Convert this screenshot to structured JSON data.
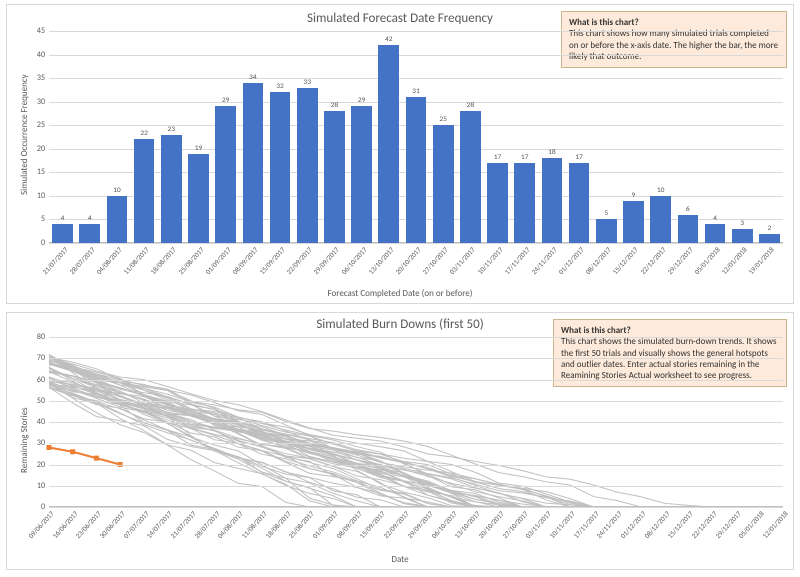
{
  "top_chart": {
    "type": "bar",
    "title": "Simulated Forecast Date Frequency",
    "title_fontsize": 13,
    "x_axis_label": "Forecast Completed Date (on or before)",
    "y_axis_label": "Simulated Occurrence Frequency",
    "label_fontsize": 9,
    "tick_fontsize": 8,
    "value_label_fontsize": 7.5,
    "y_min": 0,
    "y_max": 45,
    "y_tick_step": 5,
    "bar_color": "#4472c4",
    "background_color": "#ffffff",
    "grid_color": "#d9d9d9",
    "bar_gap_ratio": 0.24,
    "categories": [
      "21/07/2017",
      "28/07/2017",
      "04/08/2017",
      "11/08/2017",
      "18/08/2017",
      "25/08/2017",
      "01/09/2017",
      "08/09/2017",
      "15/09/2017",
      "22/09/2017",
      "29/09/2017",
      "06/10/2017",
      "13/10/2017",
      "20/10/2017",
      "27/10/2017",
      "03/11/2017",
      "10/11/2017",
      "17/11/2017",
      "24/11/2017",
      "01/12/2017",
      "08/12/2017",
      "15/12/2017",
      "22/12/2017",
      "29/12/2017",
      "05/01/2018",
      "12/01/2018",
      "19/01/2018"
    ],
    "values": [
      4,
      4,
      10,
      22,
      23,
      19,
      29,
      34,
      32,
      33,
      28,
      29,
      42,
      31,
      25,
      28,
      17,
      17,
      18,
      17,
      5,
      9,
      10,
      6,
      4,
      3,
      2
    ],
    "annotation": {
      "title": "What is this chart?",
      "body": "This chart shows how many simulated trials completed on or  before the x-axis date. The higher the bar, the more likely that outcome.",
      "background_color": "#fdeada",
      "border_color": "#ccb48f"
    }
  },
  "bottom_chart": {
    "type": "line",
    "title": "Simulated Burn Downs (first 50)",
    "title_fontsize": 13,
    "x_axis_label": "Date",
    "y_axis_label": "Remaining Stories",
    "label_fontsize": 9,
    "tick_fontsize": 8,
    "y_min": 0,
    "y_max": 80,
    "y_tick_step": 10,
    "background_color": "#ffffff",
    "grid_color": "#d9d9d9",
    "sim_line_color": "#bfbfbf",
    "sim_line_width": 1,
    "sim_line_count": 50,
    "actual_line_color": "#ed7d31",
    "actual_marker_color": "#ed7d31",
    "actual_line_width": 2,
    "actual_marker_size": 5,
    "x_categories": [
      "09/06/2017",
      "16/06/2017",
      "23/06/2017",
      "30/06/2017",
      "07/07/2017",
      "14/07/2017",
      "21/07/2017",
      "28/07/2017",
      "04/08/2017",
      "11/08/2017",
      "18/08/2017",
      "25/08/2017",
      "01/09/2017",
      "08/09/2017",
      "15/09/2017",
      "22/09/2017",
      "29/09/2017",
      "06/10/2017",
      "13/10/2017",
      "20/10/2017",
      "27/10/2017",
      "03/11/2017",
      "10/11/2017",
      "17/11/2017",
      "24/11/2017",
      "01/12/2017",
      "08/12/2017",
      "15/12/2017",
      "22/12/2017",
      "29/12/2017",
      "05/01/2018",
      "12/01/2018"
    ],
    "actual_series": {
      "x_index": [
        0,
        1,
        2,
        3
      ],
      "y": [
        28,
        26,
        23,
        20
      ]
    },
    "sim_series_sample": {
      "note": "50 grey burn-down lines starting between y≈55 and y≈72 at x_index 0, each descending irregularly to y=0 at varying x_index values between 6 and 31.",
      "start_y_min": 55,
      "start_y_max": 72,
      "end_x_index_min": 6,
      "end_x_index_max": 31
    },
    "annotation": {
      "title": "What is this chart?",
      "body": "This chart shows the simulated burn-down trends. It shows the first 50 trials and visually shows the general hotspots and outlier dates. Enter actual stories remaining in the Reamining Stories Actual worksheet to see progress.",
      "background_color": "#fdeada",
      "border_color": "#ccb48f"
    }
  }
}
